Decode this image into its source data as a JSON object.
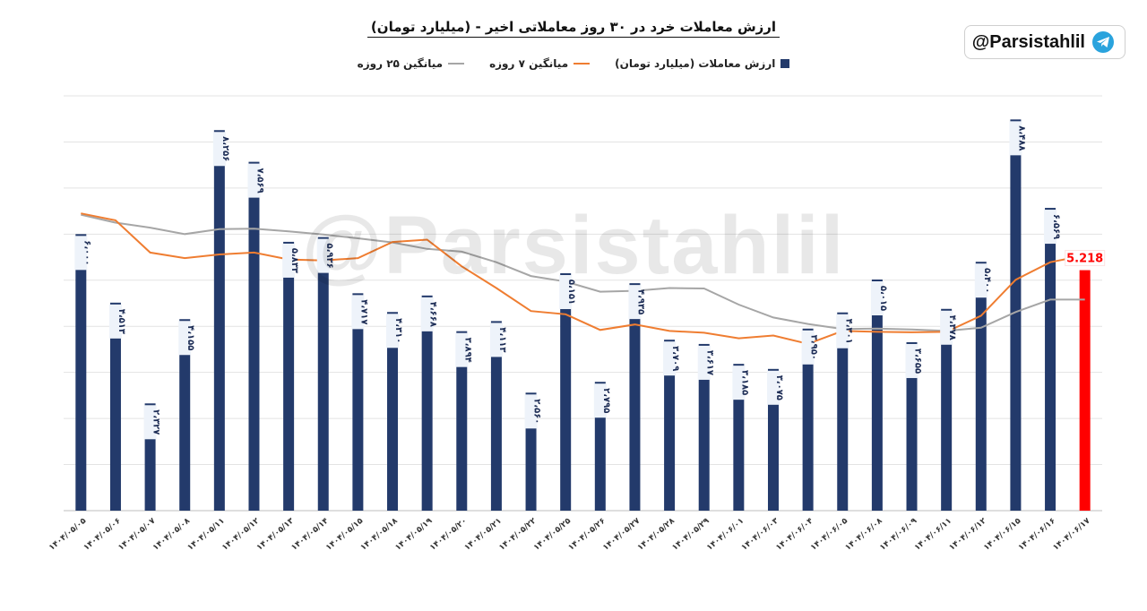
{
  "brand": {
    "handle": "@Parsistahlil",
    "icon": "telegram-icon"
  },
  "watermark": "@Parsistahlil",
  "colors": {
    "bar": "#233a6b",
    "last_bar": "#ff0000",
    "ma7": "#ef7d31",
    "ma25": "#a6a6a6",
    "grid": "#e3e3e3"
  },
  "chart_data": {
    "type": "bar",
    "title": "ارزش معاملات خرد در ۳۰ روز معاملاتی اخیر - (میلیارد تومان)",
    "legend": [
      {
        "key": "value",
        "label": "ارزش معاملات (میلیارد تومان)",
        "kind": "bar"
      },
      {
        "key": "ma7",
        "label": "میانگین ۷ روزه",
        "kind": "line"
      },
      {
        "key": "ma25",
        "label": "میانگین ۲۵ روزه",
        "kind": "line"
      }
    ],
    "legend_position": "top",
    "ylim": [
      0,
      9000
    ],
    "grid": true,
    "categories": [
      "۱۴۰۴/۰۵/۰۵",
      "۱۴۰۴/۰۵/۰۶",
      "۱۴۰۴/۰۵/۰۷",
      "۱۴۰۴/۰۵/۰۸",
      "۱۴۰۴/۰۵/۱۱",
      "۱۴۰۴/۰۵/۱۲",
      "۱۴۰۴/۰۵/۱۳",
      "۱۴۰۴/۰۵/۱۴",
      "۱۴۰۴/۰۵/۱۵",
      "۱۴۰۴/۰۵/۱۸",
      "۱۴۰۴/۰۵/۱۹",
      "۱۴۰۴/۰۵/۲۰",
      "۱۴۰۴/۰۵/۲۱",
      "۱۴۰۴/۰۵/۲۲",
      "۱۴۰۴/۰۵/۲۵",
      "۱۴۰۴/۰۵/۲۶",
      "۱۴۰۴/۰۵/۲۷",
      "۱۴۰۴/۰۵/۲۸",
      "۱۴۰۴/۰۵/۲۹",
      "۱۴۰۴/۰۶/۰۱",
      "۱۴۰۴/۰۶/۰۳",
      "۱۴۰۴/۰۶/۰۴",
      "۱۴۰۴/۰۶/۰۵",
      "۱۴۰۴/۰۶/۰۸",
      "۱۴۰۴/۰۶/۰۹",
      "۱۴۰۴/۰۶/۱۱",
      "۱۴۰۴/۰۶/۱۲",
      "۱۴۰۴/۰۶/۱۵",
      "۱۴۰۴/۰۶/۱۶",
      "۱۴۰۴/۰۶/۱۷"
    ],
    "values": [
      6000,
      4513,
      2327,
      4155,
      8256,
      7569,
      5833,
      5936,
      4717,
      4310,
      4668,
      3894,
      4113,
      2560,
      5151,
      2795,
      4935,
      3709,
      3617,
      3185,
      3075,
      3950,
      4301,
      5015,
      3655,
      4378,
      5400,
      8488,
      6569,
      5218
    ],
    "labels": [
      "۶،۰۰۰",
      "۴،۵۱۳",
      "۲،۳۲۷",
      "۴،۱۵۵",
      "۸،۲۵۶",
      "۷،۵۶۹",
      "۵،۸۳۳",
      "۵،۹۳۶",
      "۴،۷۱۷",
      "۴،۳۱۰",
      "۴،۶۶۸",
      "۳،۸۹۴",
      "۴،۱۱۳",
      "۲،۵۶۰",
      "۵،۱۵۱",
      "۲،۷۹۵",
      "۴،۹۳۵",
      "۳،۷۰۹",
      "۳،۶۱۷",
      "۳،۱۸۵",
      "۳،۰۷۵",
      "۳،۹۵۰",
      "۴،۳۰۱",
      "۵،۰۱۵",
      "۳،۶۵۵",
      "۴،۳۷۸",
      "۵،۴۰۰",
      "۸،۴۸۸",
      "۶،۵۶۹",
      "5.218"
    ],
    "ma7": [
      6450,
      6300,
      5600,
      5480,
      5560,
      5600,
      5450,
      5430,
      5480,
      5830,
      5880,
      5300,
      4830,
      4330,
      4260,
      3920,
      4040,
      3900,
      3860,
      3740,
      3800,
      3620,
      3900,
      3880,
      3870,
      3880,
      4230,
      5010,
      5390,
      5540
    ],
    "ma25": [
      6420,
      6250,
      6140,
      6000,
      6110,
      6120,
      6060,
      5990,
      5910,
      5820,
      5680,
      5620,
      5390,
      5090,
      4970,
      4750,
      4770,
      4830,
      4820,
      4470,
      4190,
      4050,
      3940,
      3950,
      3930,
      3900,
      3970,
      4310,
      4580,
      4580
    ]
  }
}
